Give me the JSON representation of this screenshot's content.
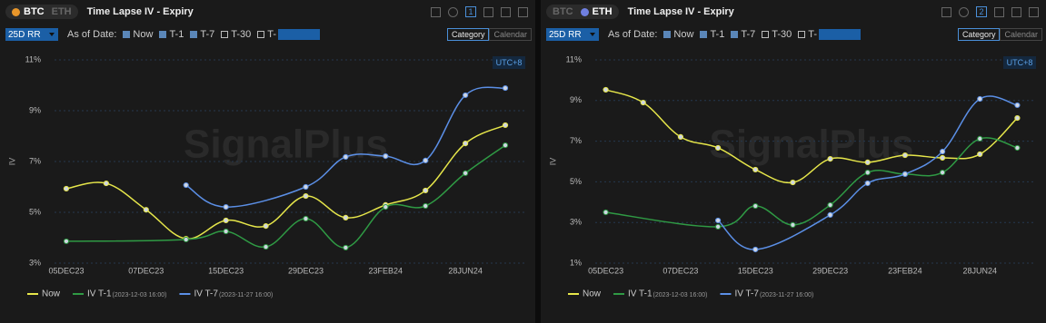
{
  "panels": [
    {
      "tabs": [
        "BTC",
        "ETH"
      ],
      "active_tab": 0,
      "title": "Time Lapse IV - Expiry",
      "badge": "1",
      "metric": "25D RR",
      "as_of_label": "As of Date:",
      "options": [
        {
          "label": "Now",
          "checked": true
        },
        {
          "label": "T-1",
          "checked": true
        },
        {
          "label": "T-7",
          "checked": true
        },
        {
          "label": "T-30",
          "checked": false
        },
        {
          "label": "T-",
          "checked": false
        }
      ],
      "views": [
        "Category",
        "Calendar"
      ],
      "active_view": 0,
      "timezone": "UTC+8",
      "watermark": "SignalPlus"
    },
    {
      "tabs": [
        "BTC",
        "ETH"
      ],
      "active_tab": 1,
      "title": "Time Lapse IV - Expiry",
      "badge": "2",
      "metric": "25D RR",
      "as_of_label": "As of Date:",
      "options": [
        {
          "label": "Now",
          "checked": true
        },
        {
          "label": "T-1",
          "checked": true
        },
        {
          "label": "T-7",
          "checked": true
        },
        {
          "label": "T-30",
          "checked": false
        },
        {
          "label": "T-",
          "checked": false
        }
      ],
      "views": [
        "Category",
        "Calendar"
      ],
      "active_view": 0,
      "timezone": "UTC+8",
      "watermark": "SignalPlus"
    }
  ],
  "chart_data": [
    {
      "type": "line",
      "y_label": "IV",
      "categories": [
        "05DEC23",
        null,
        "07DEC23",
        null,
        "15DEC23",
        null,
        "29DEC23",
        null,
        "23FEB24",
        null,
        "28JUN24",
        null
      ],
      "series": [
        {
          "name": "Now",
          "color": "#e6e64a",
          "values": [
            5.93,
            6.14,
            5.1,
            3.96,
            4.68,
            4.46,
            5.64,
            4.79,
            5.29,
            5.86,
            7.71,
            8.43
          ]
        },
        {
          "name": "IV T-1",
          "date": "(2023-12-03 16:00)",
          "color": "#2f9a44",
          "values": [
            3.86,
            null,
            null,
            3.93,
            4.25,
            3.64,
            4.75,
            3.61,
            5.21,
            5.25,
            6.54,
            7.64
          ]
        },
        {
          "name": "IV T-7",
          "date": "(2023-11-27 16:00)",
          "color": "#5b8fe6",
          "values": [
            null,
            null,
            null,
            6.07,
            5.21,
            null,
            6.0,
            7.18,
            7.21,
            7.04,
            9.61,
            9.89
          ]
        }
      ],
      "ylim": [
        3,
        11
      ],
      "yticks": [
        {
          "value": 3,
          "label": "3%"
        },
        {
          "value": 5,
          "label": "5%"
        },
        {
          "value": 7,
          "label": "7%"
        },
        {
          "value": 9,
          "label": "9%"
        },
        {
          "value": 11,
          "label": "11%"
        }
      ],
      "grid": true,
      "connect_nulls": true
    },
    {
      "type": "line",
      "y_label": "IV",
      "categories": [
        "05DEC23",
        null,
        "07DEC23",
        null,
        "15DEC23",
        null,
        "29DEC23",
        null,
        "23FEB24",
        null,
        "28JUN24",
        null
      ],
      "series": [
        {
          "name": "Now",
          "color": "#e6e64a",
          "values": [
            9.53,
            8.9,
            7.21,
            6.67,
            5.6,
            4.97,
            6.13,
            5.96,
            6.31,
            6.18,
            6.36,
            8.14
          ]
        },
        {
          "name": "IV T-1",
          "date": "(2023-12-03 16:00)",
          "color": "#2f9a44",
          "values": [
            3.5,
            null,
            null,
            2.79,
            3.81,
            2.88,
            3.86,
            5.46,
            5.38,
            5.46,
            7.12,
            6.67
          ]
        },
        {
          "name": "IV T-7",
          "date": "(2023-11-27 16:00)",
          "color": "#5b8fe6",
          "values": [
            null,
            null,
            null,
            3.1,
            1.67,
            null,
            3.37,
            4.93,
            5.38,
            6.49,
            9.08,
            8.77
          ]
        }
      ],
      "ylim": [
        1,
        11
      ],
      "yticks": [
        {
          "value": 1,
          "label": "1%"
        },
        {
          "value": 3,
          "label": "3%"
        },
        {
          "value": 5,
          "label": "5%"
        },
        {
          "value": 7,
          "label": "7%"
        },
        {
          "value": 9,
          "label": "9%"
        },
        {
          "value": 11,
          "label": "11%"
        }
      ],
      "grid": true,
      "connect_nulls": true
    }
  ]
}
